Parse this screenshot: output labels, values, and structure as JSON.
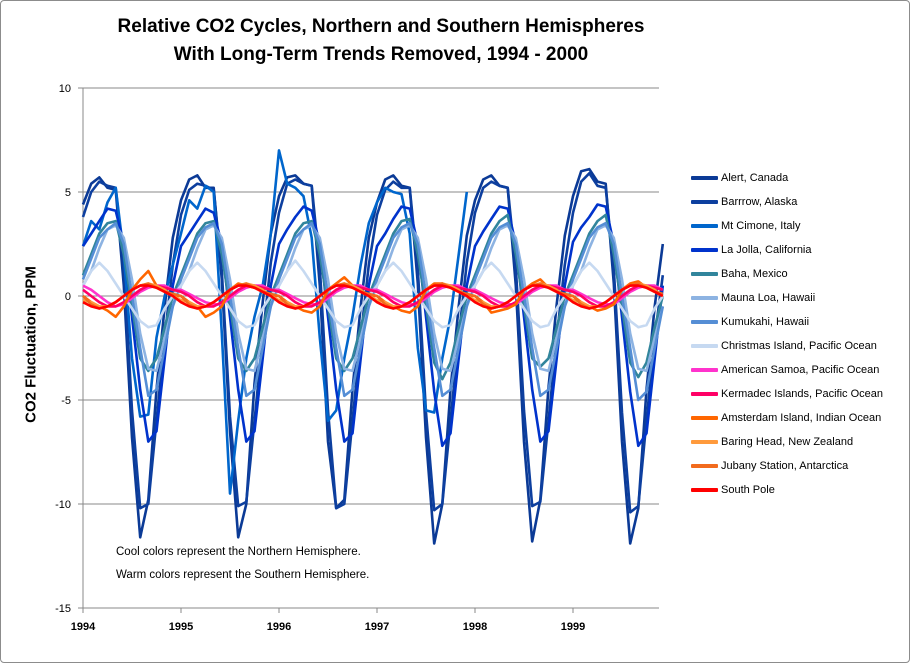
{
  "chart_data": {
    "type": "line",
    "title": [
      "Relative CO2 Cycles, Northern and Southern Hemispheres",
      "With Long-Term Trends Removed,  1994 - 2000"
    ],
    "xlabel": "",
    "ylabel": "CO2 Fluctuation,  PPM",
    "x_ticks": [
      "1994",
      "1995",
      "1996",
      "1997",
      "1998",
      "1999"
    ],
    "xlim": [
      1994,
      2000
    ],
    "ylim": [
      -15,
      10
    ],
    "y_ticks": [
      10,
      5,
      0,
      -5,
      -10,
      -15
    ],
    "grid": "horizontal",
    "legend_position": "right",
    "frequency": "monthly",
    "annotations": [
      "Cool colors represent  the Northern Hemisphere.",
      "Warm colors represent the Southern Hemisphere."
    ],
    "series": [
      {
        "name": "Alert, Canada",
        "color": "#0b3a96",
        "values": [
          4.4,
          5.4,
          5.7,
          5.2,
          5.1,
          0.5,
          -6.8,
          -11.6,
          -9.8,
          -4.5,
          -0.5,
          2.8,
          4.6,
          5.6,
          5.8,
          5.2,
          5.2,
          0.8,
          -6.5,
          -11.6,
          -10,
          -4.2,
          -0.3,
          3,
          4.8,
          5.7,
          5.8,
          5.4,
          5.3,
          0.5,
          -7,
          -10.2,
          -9.8,
          -4.5,
          -0.5,
          2.8,
          4.5,
          5.6,
          5.8,
          5.3,
          5.2,
          0.6,
          -6.8,
          -11.9,
          -10,
          -4.5,
          -0.5,
          2.9,
          4.6,
          5.6,
          5.8,
          5.3,
          5.2,
          0.5,
          -7,
          -11.8,
          -9.8,
          -4.4,
          -0.4,
          2.9,
          4.8,
          6,
          6.1,
          5.5,
          5.4,
          0.6,
          -7,
          -11.9,
          -10.2,
          -4.5,
          -0.5,
          2.5
        ]
      },
      {
        "name": "Barrrow, Alaska",
        "color": "#0d3f9f",
        "values": [
          3.8,
          5,
          5.5,
          5.3,
          5.2,
          1.5,
          -5.5,
          -10.2,
          -10,
          -6,
          -2,
          1.5,
          3.9,
          5.1,
          5.4,
          5.3,
          5.1,
          1.2,
          -5.8,
          -10.1,
          -9.9,
          -6,
          -2,
          1.6,
          4,
          5.4,
          5.6,
          5.4,
          5.3,
          1.4,
          -5.5,
          -10.2,
          -10,
          -6,
          -2,
          1.5,
          3.9,
          5.1,
          5.5,
          5.2,
          5.2,
          1.3,
          -5.6,
          -10.3,
          -10,
          -6,
          -2,
          1.6,
          4,
          5.2,
          5.5,
          5.3,
          5.2,
          1.4,
          -5.5,
          -10.1,
          -9.9,
          -6,
          -2,
          1.5,
          4,
          5.5,
          5.9,
          5.3,
          5.2,
          1.3,
          -5.6,
          -10.4,
          -10.1,
          -6,
          -2,
          1
        ]
      },
      {
        "name": "Mt Cimone, Italy",
        "color": "#0066cc",
        "values": [
          2.4,
          3.6,
          3.2,
          4.5,
          5.2,
          2,
          -3,
          -5.8,
          -5.7,
          -2,
          0,
          1.5,
          3,
          4.6,
          4.2,
          5.3,
          5,
          -1.8,
          -9.5,
          -6,
          -3,
          -1,
          0.5,
          3,
          7,
          5.4,
          5.2,
          4.8,
          2.8,
          -2,
          -6,
          -5.5,
          -3,
          -1,
          1.5,
          3.5,
          4.5,
          5.2,
          5,
          4.9,
          3,
          -2.5,
          -5.5,
          -5.6,
          -3,
          -1,
          2,
          5,
          null,
          null,
          null,
          null,
          null,
          null,
          null,
          null,
          null,
          null,
          null,
          null,
          null,
          null,
          null,
          null,
          null,
          null,
          null,
          null,
          null,
          null,
          null,
          null
        ]
      },
      {
        "name": "La Jolla, California",
        "color": "#0033cc",
        "values": [
          2.4,
          3,
          3.6,
          4.2,
          4.1,
          2.5,
          -1,
          -4.5,
          -7,
          -6.5,
          -3,
          0.5,
          2.4,
          3,
          3.6,
          4.2,
          4,
          2.5,
          -1,
          -4.5,
          -7,
          -6.5,
          -3,
          0.5,
          2.5,
          3.2,
          3.8,
          4.3,
          4.1,
          2.5,
          -1,
          -4.5,
          -7,
          -6.6,
          -3,
          0.5,
          2.4,
          3,
          3.7,
          4.3,
          4.2,
          2.5,
          -1,
          -4.6,
          -7.2,
          -6.6,
          -3,
          0.5,
          2.4,
          3.1,
          3.7,
          4.3,
          4.2,
          2.5,
          -1,
          -4.5,
          -7,
          -6.5,
          -3,
          0.5,
          2.6,
          3.3,
          3.8,
          4.4,
          4.3,
          2.5,
          -1,
          -4.6,
          -7.2,
          -6.6,
          -3,
          0.5
        ]
      },
      {
        "name": "Baha, Mexico",
        "color": "#31859c",
        "values": [
          1,
          2,
          3,
          3.5,
          3.6,
          2,
          -0.5,
          -3,
          -3.6,
          -3,
          -1.5,
          0,
          1,
          2,
          3,
          3.5,
          3.6,
          2,
          -0.5,
          -3,
          -3.6,
          -3,
          -1.5,
          0,
          1,
          2,
          3,
          3.5,
          3.6,
          2,
          -0.5,
          -3,
          -3.6,
          -3,
          -1.5,
          0,
          1,
          2,
          3,
          3.6,
          3.7,
          2,
          -0.5,
          -3.2,
          -4,
          -3.2,
          -1.5,
          0,
          1,
          2,
          3,
          3.6,
          3.9,
          2,
          -0.5,
          -3,
          -3.4,
          -3,
          -1.5,
          0,
          1,
          2,
          3,
          3.6,
          3.9,
          2,
          -0.5,
          -3.2,
          -3.9,
          -3.2,
          -1.5,
          0
        ]
      },
      {
        "name": "Mauna Loa, Hawaii",
        "color": "#8db3e2",
        "values": [
          0.5,
          1.2,
          2.3,
          3.2,
          3.4,
          2.8,
          0.8,
          -1.8,
          -3.5,
          -3.6,
          -2,
          -0.5,
          0.5,
          1.2,
          2.3,
          3.2,
          3.4,
          2.8,
          0.8,
          -1.8,
          -3.5,
          -3.6,
          -2,
          -0.5,
          0.5,
          1.2,
          2.3,
          3.2,
          3.4,
          2.8,
          0.8,
          -1.8,
          -3.5,
          -3.6,
          -2,
          -0.5,
          0.5,
          1.2,
          2.3,
          3.2,
          3.4,
          2.8,
          0.8,
          -1.8,
          -3.5,
          -3.6,
          -2,
          -0.5,
          0.5,
          1.2,
          2.3,
          3.2,
          3.4,
          2.8,
          0.8,
          -1.8,
          -3.5,
          -3.6,
          -2,
          -0.5,
          0.5,
          1.2,
          2.3,
          3.2,
          3.4,
          2.8,
          0.8,
          -1.8,
          -3.5,
          -3.6,
          -2,
          -0.5
        ]
      },
      {
        "name": "Kumukahi, Hawaii",
        "color": "#558ed5",
        "values": [
          0.8,
          1.8,
          2.8,
          3.2,
          3.5,
          2.5,
          0,
          -2.5,
          -4.8,
          -4.5,
          -2.5,
          -0.5,
          0.8,
          1.8,
          2.8,
          3.3,
          3.5,
          2.5,
          0,
          -2.5,
          -4.8,
          -4.5,
          -2.5,
          -0.5,
          0.8,
          1.8,
          2.8,
          3.2,
          3.5,
          2.5,
          0,
          -2.5,
          -4.8,
          -4.5,
          -2.5,
          -0.5,
          0.8,
          1.8,
          2.8,
          3.3,
          3.5,
          2.5,
          0,
          -2.5,
          -4.8,
          -4.5,
          -2.5,
          -0.5,
          0.8,
          1.8,
          2.8,
          3.3,
          3.5,
          2.5,
          0,
          -2.5,
          -4.8,
          -4.5,
          -2.5,
          -0.5,
          0.8,
          1.8,
          2.8,
          3.3,
          3.5,
          2.5,
          0,
          -2.5,
          -5,
          -4.6,
          -2.5,
          -0.5
        ]
      },
      {
        "name": "Christmas Island, Pacific Ocean",
        "color": "#c6d9f1",
        "values": [
          0.5,
          1.2,
          1.6,
          1.2,
          0.6,
          0,
          -0.6,
          -1.2,
          -1.5,
          -1.4,
          -0.6,
          0,
          0.5,
          1.2,
          1.6,
          1.2,
          0.6,
          0,
          -0.6,
          -1.2,
          -1.5,
          -1.4,
          -0.6,
          0,
          0.5,
          1.2,
          1.7,
          1.2,
          0.6,
          0,
          -0.6,
          -1.2,
          -1.5,
          -1.4,
          -0.6,
          0,
          0.5,
          1.2,
          1.6,
          1.2,
          0.6,
          0,
          -0.6,
          -1.2,
          -1.5,
          -1.4,
          -0.6,
          0,
          0.5,
          1.2,
          1.6,
          1.2,
          0.6,
          0,
          -0.6,
          -1.2,
          -1.5,
          -1.4,
          -0.6,
          0,
          0.5,
          1.2,
          1.6,
          1.2,
          0.6,
          0,
          -0.6,
          -1.2,
          -1.5,
          -1.4,
          -0.6,
          0
        ]
      },
      {
        "name": "American Samoa,  Pacific Ocean",
        "color": "#ff33cc",
        "values": [
          0.5,
          0.3,
          0,
          -0.3,
          -0.5,
          -0.4,
          -0.1,
          0.2,
          0.4,
          0.5,
          0.5,
          0.3,
          0.3,
          0.1,
          -0.1,
          -0.3,
          -0.4,
          -0.4,
          -0.1,
          0.2,
          0.4,
          0.5,
          0.5,
          0.3,
          0.3,
          0.1,
          -0.1,
          -0.3,
          -0.4,
          -0.4,
          -0.1,
          0.2,
          0.4,
          0.5,
          0.5,
          0.3,
          0.3,
          0.1,
          -0.1,
          -0.3,
          -0.4,
          -0.4,
          -0.1,
          0.2,
          0.4,
          0.5,
          0.5,
          0.3,
          0.3,
          0.1,
          -0.1,
          -0.3,
          -0.4,
          -0.4,
          -0.1,
          0.2,
          0.4,
          0.5,
          0.5,
          0.3,
          0.3,
          0.1,
          -0.1,
          -0.3,
          -0.4,
          -0.4,
          -0.1,
          0.2,
          0.4,
          0.5,
          0.5,
          0.3
        ]
      },
      {
        "name": "Kermadec Islands, Pacific Ocean",
        "color": "#ff0066",
        "values": [
          0.3,
          0,
          -0.3,
          -0.5,
          -0.5,
          -0.3,
          0,
          0.3,
          0.5,
          0.5,
          0.4,
          0.3,
          0.2,
          0,
          -0.3,
          -0.5,
          -0.5,
          -0.3,
          0,
          0.3,
          0.5,
          0.5,
          0.4,
          0.3,
          0.2,
          0,
          -0.3,
          -0.5,
          -0.5,
          -0.3,
          0,
          0.3,
          0.5,
          0.5,
          0.4,
          0.3,
          0.2,
          0,
          -0.3,
          -0.5,
          -0.5,
          -0.3,
          0,
          0.3,
          0.5,
          0.5,
          0.4,
          0.3,
          0.2,
          0,
          -0.3,
          -0.5,
          -0.5,
          -0.3,
          0,
          0.3,
          0.5,
          0.5,
          0.4,
          0.3,
          0.2,
          0,
          -0.3,
          -0.5,
          -0.5,
          -0.3,
          0,
          0.3,
          0.5,
          0.5,
          0.4,
          0.3
        ]
      },
      {
        "name": "Amsterdam Island,  Indian Ocean",
        "color": "#ff6600",
        "values": [
          0,
          -0.3,
          -0.5,
          -0.7,
          -1,
          -0.5,
          0.3,
          0.8,
          1.2,
          0.5,
          0.2,
          0,
          0,
          -0.3,
          -0.5,
          -1,
          -0.8,
          -0.5,
          0.3,
          0.6,
          0.5,
          0.4,
          0.2,
          0,
          0,
          -0.3,
          -0.5,
          -0.7,
          -0.8,
          -0.5,
          0.3,
          0.6,
          0.9,
          0.5,
          0.2,
          0,
          0,
          -0.3,
          -0.5,
          -0.7,
          -0.8,
          -0.5,
          0.3,
          0.6,
          0.6,
          0.4,
          0.2,
          0,
          0,
          -0.3,
          -0.8,
          -0.7,
          -0.6,
          -0.4,
          0.3,
          0.6,
          0.8,
          0.4,
          0.2,
          0,
          0,
          -0.3,
          -0.5,
          -0.7,
          -0.6,
          -0.4,
          0.3,
          0.6,
          0.7,
          0.4,
          0.2,
          0
        ]
      },
      {
        "name": "Baring Head, New Zealand",
        "color": "#ff9a3c",
        "values": [
          -0.2,
          -0.3,
          -0.5,
          -0.5,
          -0.3,
          0,
          0.3,
          0.5,
          0.6,
          0.5,
          0.3,
          0,
          -0.2,
          -0.3,
          -0.5,
          -0.5,
          -0.3,
          0,
          0.3,
          0.5,
          0.6,
          0.5,
          0.3,
          0,
          -0.2,
          -0.3,
          -0.5,
          -0.5,
          -0.3,
          0,
          0.3,
          0.5,
          0.6,
          0.5,
          0.3,
          0,
          -0.2,
          -0.3,
          -0.5,
          -0.5,
          -0.3,
          0,
          0.3,
          0.5,
          0.6,
          0.5,
          0.3,
          0,
          -0.2,
          -0.3,
          -0.5,
          -0.5,
          -0.3,
          0,
          0.3,
          0.5,
          0.6,
          0.5,
          0.3,
          0,
          -0.2,
          -0.3,
          -0.5,
          -0.5,
          -0.3,
          0,
          0.3,
          0.5,
          0.6,
          0.5,
          0.3,
          0
        ]
      },
      {
        "name": "Jubany Station,  Antarctica",
        "color": "#f26b1d",
        "values": [
          0,
          -0.4,
          -0.6,
          -0.5,
          -0.3,
          0,
          0.3,
          0.5,
          0.6,
          0.4,
          0.2,
          0.1,
          0,
          -0.4,
          -0.6,
          -0.5,
          -0.3,
          0,
          0.3,
          0.5,
          0.6,
          0.4,
          0.2,
          0.1,
          0,
          -0.4,
          -0.6,
          -0.5,
          -0.3,
          0,
          0.3,
          0.5,
          0.6,
          0.4,
          0.2,
          0.1,
          0,
          -0.4,
          -0.6,
          -0.5,
          -0.3,
          0,
          0.3,
          0.5,
          0.6,
          0.4,
          0.2,
          0.1,
          0,
          -0.4,
          -0.6,
          -0.5,
          -0.3,
          0,
          0.3,
          0.5,
          0.6,
          0.4,
          0.2,
          0.1,
          0,
          -0.4,
          -0.6,
          -0.5,
          -0.3,
          0,
          0.3,
          0.5,
          0.6,
          0.4,
          0.2,
          0.1
        ]
      },
      {
        "name": "South Pole",
        "color": "#ff0000",
        "values": [
          -0.3,
          -0.5,
          -0.6,
          -0.5,
          -0.3,
          0,
          0.3,
          0.5,
          0.5,
          0.4,
          0.2,
          0,
          -0.3,
          -0.5,
          -0.6,
          -0.5,
          -0.3,
          0,
          0.3,
          0.5,
          0.5,
          0.4,
          0.2,
          0,
          -0.3,
          -0.5,
          -0.6,
          -0.5,
          -0.3,
          0,
          0.3,
          0.5,
          0.5,
          0.4,
          0.2,
          0,
          -0.3,
          -0.5,
          -0.6,
          -0.5,
          -0.3,
          0,
          0.3,
          0.5,
          0.5,
          0.4,
          0.2,
          0,
          -0.3,
          -0.5,
          -0.6,
          -0.5,
          -0.3,
          0,
          0.3,
          0.5,
          0.5,
          0.4,
          0.2,
          0,
          -0.3,
          -0.5,
          -0.6,
          -0.5,
          -0.3,
          0,
          0.3,
          0.5,
          0.5,
          0.4,
          0.2,
          0
        ]
      }
    ]
  }
}
